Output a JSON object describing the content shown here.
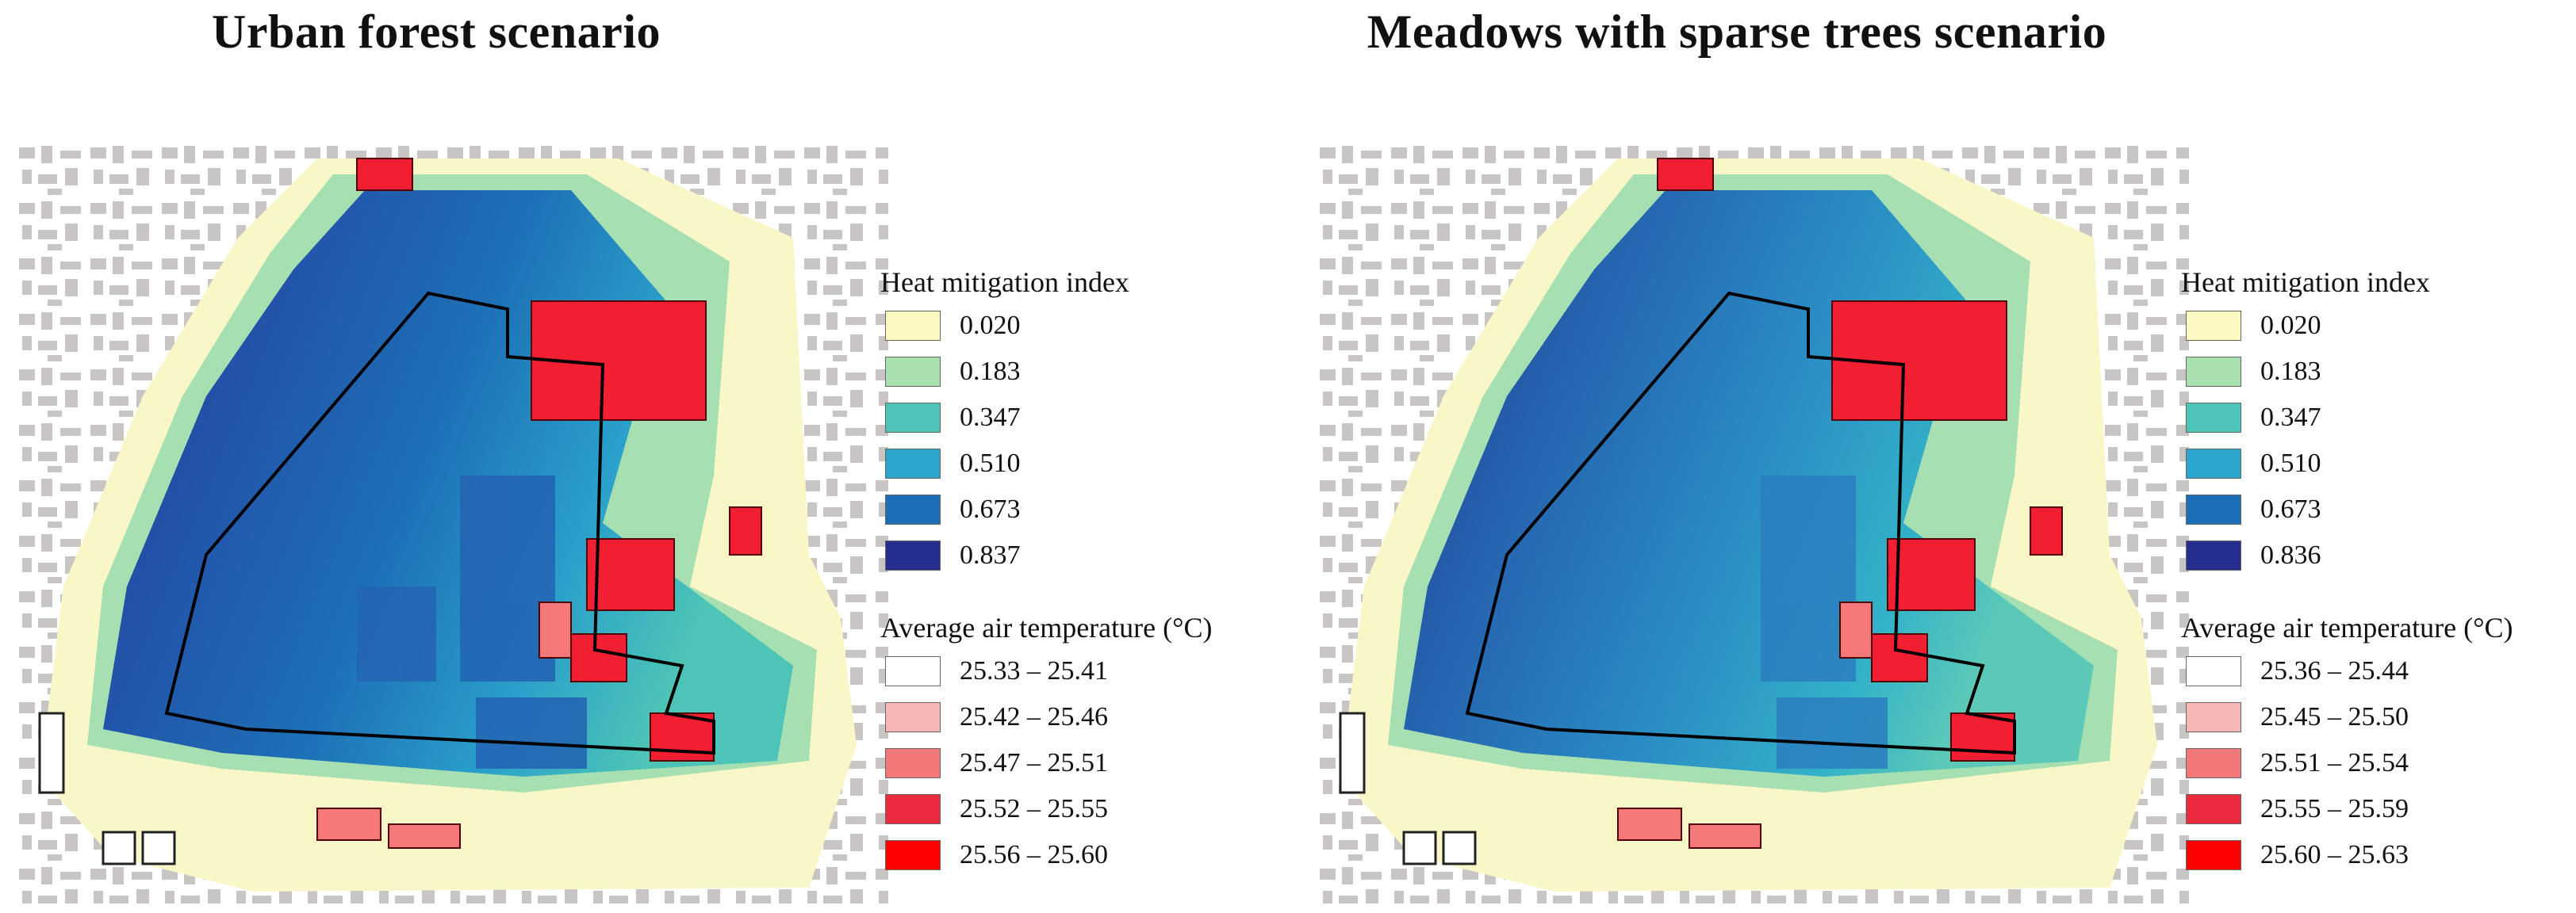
{
  "colors": {
    "hmi": [
      "#fcf9c3",
      "#a8e0b0",
      "#4cc4b6",
      "#2ba5cc",
      "#1c6fb6",
      "#272f8e"
    ],
    "temp": [
      "#ffffff",
      "#f8b7b7",
      "#f27878",
      "#ea2a3d",
      "#ff0000"
    ],
    "building": "#c7c2c2"
  },
  "panels": [
    {
      "title": "Urban forest scenario",
      "hmi_legend": {
        "title": "Heat mitigation index",
        "items": [
          "0.020",
          "0.183",
          "0.347",
          "0.510",
          "0.673",
          "0.837"
        ]
      },
      "temp_legend": {
        "title": "Average air temperature (°C)",
        "items": [
          "25.33 – 25.41",
          "25.42 – 25.46",
          "25.47 – 25.51",
          "25.52 – 25.55",
          "25.56 – 25.60"
        ]
      }
    },
    {
      "title": "Meadows with sparse trees scenario",
      "hmi_legend": {
        "title": "Heat mitigation index",
        "items": [
          "0.020",
          "0.183",
          "0.347",
          "0.510",
          "0.673",
          "0.836"
        ]
      },
      "temp_legend": {
        "title": "Average air temperature (°C)",
        "items": [
          "25.36 – 25.44",
          "25.45 – 25.50",
          "25.51 – 25.54",
          "25.55 – 25.59",
          "25.60 – 25.63"
        ]
      }
    }
  ]
}
